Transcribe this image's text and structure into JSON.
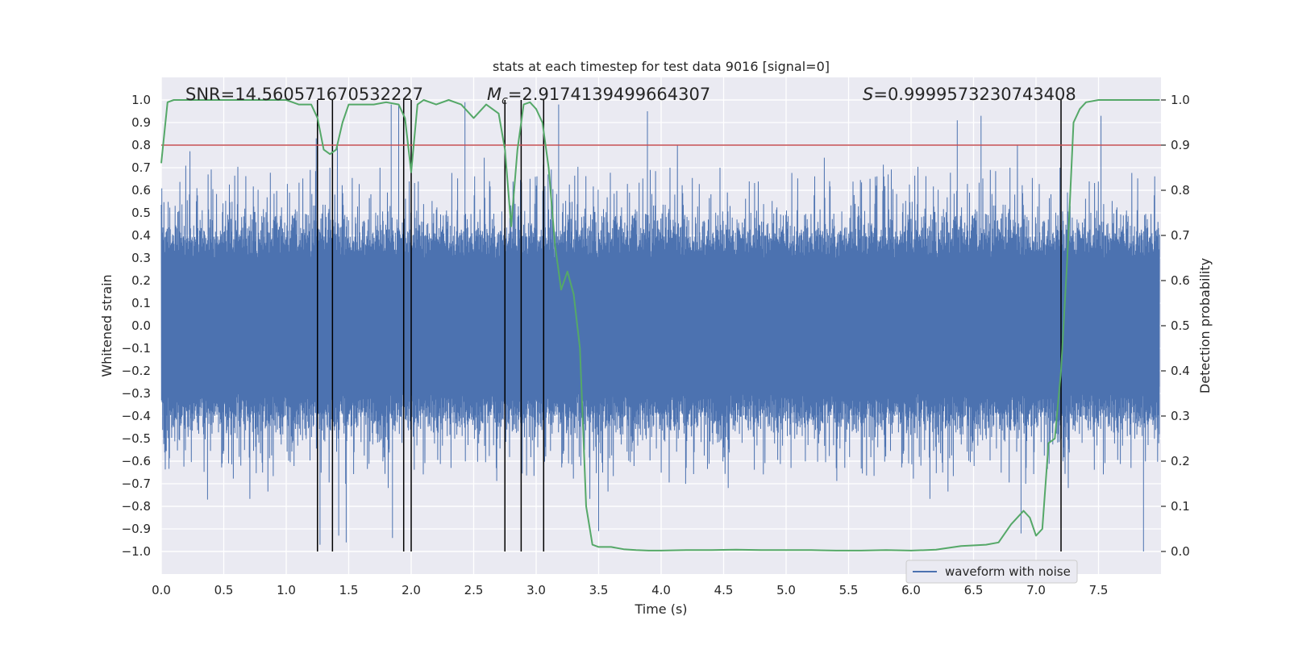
{
  "chart_data": {
    "type": "line",
    "title": "stats at each timestep for test data 9016 [signal=0]",
    "xlabel": "Time (s)",
    "ylabel": "Whitened strain",
    "ylabel_right": "Detection probability",
    "xlim": [
      0.0,
      8.0
    ],
    "ylim": [
      -1.1,
      1.1
    ],
    "ylim_right": [
      -0.05,
      1.05
    ],
    "xticks": [
      0.0,
      0.5,
      1.0,
      1.5,
      2.0,
      2.5,
      3.0,
      3.5,
      4.0,
      4.5,
      5.0,
      5.5,
      6.0,
      6.5,
      7.0,
      7.5
    ],
    "xtick_labels": [
      "0.0",
      "0.5",
      "1.0",
      "1.5",
      "2.0",
      "2.5",
      "3.0",
      "3.5",
      "4.0",
      "4.5",
      "5.0",
      "5.5",
      "6.0",
      "6.5",
      "7.0",
      "7.5"
    ],
    "yticks": [
      -1.0,
      -0.9,
      -0.8,
      -0.7,
      -0.6,
      -0.5,
      -0.4,
      -0.3,
      -0.2,
      -0.1,
      0.0,
      0.1,
      0.2,
      0.3,
      0.4,
      0.5,
      0.6,
      0.7,
      0.8,
      0.9,
      1.0
    ],
    "ytick_labels": [
      "−1.0",
      "−0.9",
      "−0.8",
      "−0.7",
      "−0.6",
      "−0.5",
      "−0.4",
      "−0.3",
      "−0.2",
      "−0.1",
      "0.0",
      "0.1",
      "0.2",
      "0.3",
      "0.4",
      "0.5",
      "0.6",
      "0.7",
      "0.8",
      "0.9",
      "1.0"
    ],
    "yticks_right": [
      0.0,
      0.1,
      0.2,
      0.3,
      0.4,
      0.5,
      0.6,
      0.7,
      0.8,
      0.9,
      1.0
    ],
    "ytick_labels_right": [
      "0.0",
      "0.1",
      "0.2",
      "0.3",
      "0.4",
      "0.5",
      "0.6",
      "0.7",
      "0.8",
      "0.9",
      "1.0"
    ],
    "grid": true,
    "annotations": {
      "snr": "SNR=14.560571670532227",
      "mc_symbol": "M",
      "mc_sub": "c",
      "mc_value": "=2.9174139499664307",
      "s_symbol": "S",
      "s_value": "=0.9999573230743408"
    },
    "legend": {
      "label": "waveform with noise",
      "placement": "lower-right"
    },
    "threshold": {
      "value": 0.9,
      "axis": "right",
      "color": "#c44e52"
    },
    "event_lines_x": [
      1.25,
      1.37,
      1.94,
      2.0,
      2.75,
      2.88,
      3.06,
      7.2
    ],
    "waveform": {
      "name": "waveform with noise",
      "color": "#4c72b0",
      "x_range": [
        0.0,
        7.99
      ],
      "envelope_typical": 0.42,
      "peaks": [
        {
          "x": 1.24,
          "y": 0.83
        },
        {
          "x": 1.84,
          "y": 0.98
        },
        {
          "x": 1.9,
          "y": 0.98
        },
        {
          "x": 2.43,
          "y": 0.99
        },
        {
          "x": 3.18,
          "y": 0.98
        },
        {
          "x": 3.89,
          "y": 0.95
        },
        {
          "x": 6.37,
          "y": 0.91
        },
        {
          "x": 6.56,
          "y": 0.93
        },
        {
          "x": 7.52,
          "y": 0.93
        },
        {
          "x": 0.37,
          "y": -0.77
        },
        {
          "x": 1.27,
          "y": -0.97
        },
        {
          "x": 1.42,
          "y": -0.93
        },
        {
          "x": 1.48,
          "y": -0.96
        },
        {
          "x": 1.85,
          "y": -0.94
        },
        {
          "x": 3.5,
          "y": -0.91
        },
        {
          "x": 6.88,
          "y": -0.92
        },
        {
          "x": 7.86,
          "y": -1.0
        }
      ]
    },
    "probability": {
      "name": "detection probability",
      "color": "#55a868",
      "axis": "right",
      "x": [
        0.0,
        0.05,
        0.1,
        0.2,
        0.3,
        0.4,
        0.5,
        0.6,
        0.7,
        0.8,
        0.9,
        1.0,
        1.1,
        1.2,
        1.25,
        1.3,
        1.35,
        1.4,
        1.45,
        1.5,
        1.6,
        1.7,
        1.8,
        1.9,
        1.95,
        2.0,
        2.05,
        2.1,
        2.2,
        2.3,
        2.4,
        2.5,
        2.6,
        2.7,
        2.75,
        2.8,
        2.85,
        2.9,
        2.95,
        3.0,
        3.05,
        3.1,
        3.15,
        3.2,
        3.25,
        3.3,
        3.35,
        3.4,
        3.45,
        3.5,
        3.6,
        3.7,
        3.8,
        3.9,
        4.0,
        4.2,
        4.4,
        4.6,
        4.8,
        5.0,
        5.2,
        5.4,
        5.6,
        5.8,
        6.0,
        6.2,
        6.4,
        6.6,
        6.7,
        6.8,
        6.9,
        6.95,
        7.0,
        7.05,
        7.1,
        7.15,
        7.2,
        7.25,
        7.3,
        7.35,
        7.4,
        7.5,
        7.6,
        7.7,
        7.8,
        7.9,
        7.99
      ],
      "y": [
        0.86,
        0.995,
        1.0,
        1.0,
        1.0,
        1.0,
        1.0,
        1.0,
        1.0,
        1.0,
        1.0,
        1.0,
        0.99,
        0.99,
        0.96,
        0.89,
        0.88,
        0.89,
        0.95,
        0.99,
        0.99,
        0.99,
        0.995,
        0.99,
        0.96,
        0.84,
        0.99,
        1.0,
        0.99,
        1.0,
        0.99,
        0.96,
        0.99,
        0.97,
        0.89,
        0.72,
        0.89,
        0.99,
        0.995,
        0.98,
        0.95,
        0.85,
        0.68,
        0.58,
        0.62,
        0.57,
        0.45,
        0.1,
        0.015,
        0.01,
        0.01,
        0.005,
        0.003,
        0.002,
        0.002,
        0.003,
        0.003,
        0.004,
        0.003,
        0.003,
        0.003,
        0.002,
        0.002,
        0.003,
        0.002,
        0.004,
        0.012,
        0.015,
        0.02,
        0.06,
        0.09,
        0.075,
        0.035,
        0.05,
        0.24,
        0.25,
        0.4,
        0.65,
        0.95,
        0.98,
        0.995,
        1.0,
        1.0,
        1.0,
        1.0,
        1.0,
        1.0
      ]
    }
  }
}
